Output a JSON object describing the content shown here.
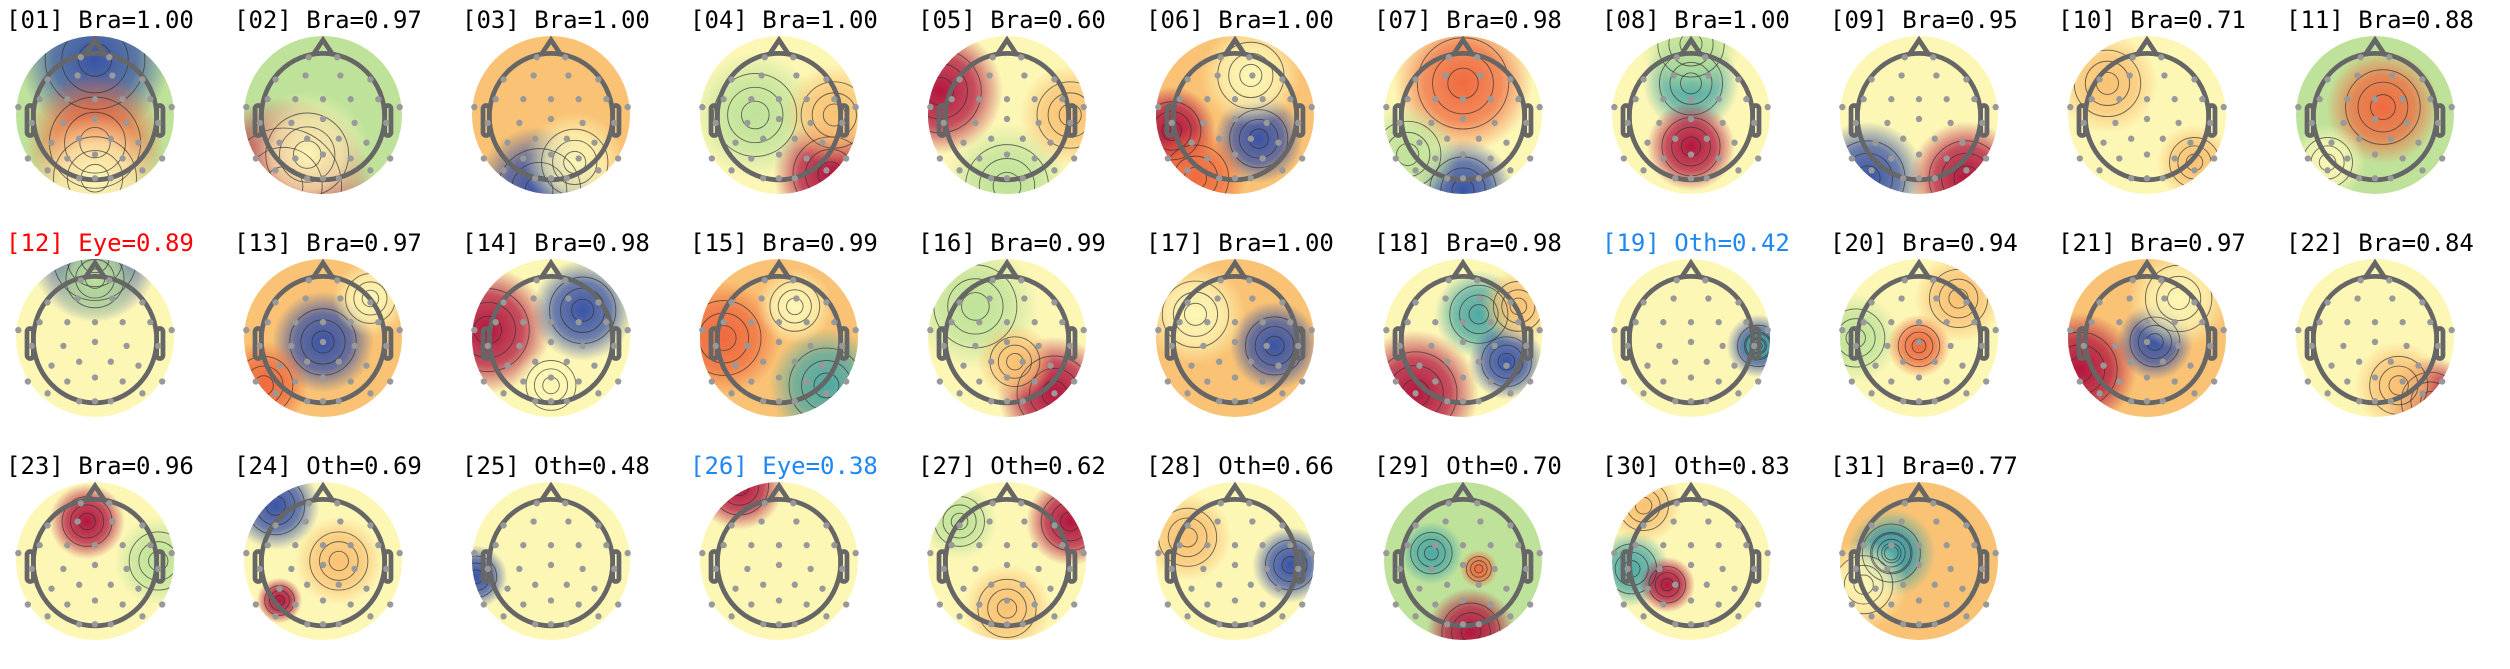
{
  "colors": {
    "default_label": "#000000",
    "eye_flagged": "#ff0000",
    "reclassified": "#1e88f0"
  },
  "colormap": [
    "#3a54a6",
    "#4ea9a4",
    "#bfe29a",
    "#fdf7b6",
    "#f9c274",
    "#ef6a3f",
    "#b3163f"
  ],
  "components": [
    {
      "label": "[01] Bra=1.00",
      "color": "#000000"
    },
    {
      "label": "[02] Bra=0.97",
      "color": "#000000"
    },
    {
      "label": "[03] Bra=1.00",
      "color": "#000000"
    },
    {
      "label": "[04] Bra=1.00",
      "color": "#000000"
    },
    {
      "label": "[05] Bra=0.60",
      "color": "#000000"
    },
    {
      "label": "[06] Bra=1.00",
      "color": "#000000"
    },
    {
      "label": "[07] Bra=0.98",
      "color": "#000000"
    },
    {
      "label": "[08] Bra=1.00",
      "color": "#000000"
    },
    {
      "label": "[09] Bra=0.95",
      "color": "#000000"
    },
    {
      "label": "[10] Bra=0.71",
      "color": "#000000"
    },
    {
      "label": "[11] Bra=0.88",
      "color": "#000000"
    },
    {
      "label": "[12] Eye=0.89",
      "color": "#ff0000"
    },
    {
      "label": "[13] Bra=0.97",
      "color": "#000000"
    },
    {
      "label": "[14] Bra=0.98",
      "color": "#000000"
    },
    {
      "label": "[15] Bra=0.99",
      "color": "#000000"
    },
    {
      "label": "[16] Bra=0.99",
      "color": "#000000"
    },
    {
      "label": "[17] Bra=1.00",
      "color": "#000000"
    },
    {
      "label": "[18] Bra=0.98",
      "color": "#000000"
    },
    {
      "label": "[19] Oth=0.42",
      "color": "#1e88f0"
    },
    {
      "label": "[20] Bra=0.94",
      "color": "#000000"
    },
    {
      "label": "[21] Bra=0.97",
      "color": "#000000"
    },
    {
      "label": "[22] Bra=0.84",
      "color": "#000000"
    },
    {
      "label": "[23] Bra=0.96",
      "color": "#000000"
    },
    {
      "label": "[24] Oth=0.69",
      "color": "#000000"
    },
    {
      "label": "[25] Oth=0.48",
      "color": "#000000"
    },
    {
      "label": "[26] Eye=0.38",
      "color": "#1e88f0"
    },
    {
      "label": "[27] Oth=0.62",
      "color": "#000000"
    },
    {
      "label": "[28] Oth=0.66",
      "color": "#000000"
    },
    {
      "label": "[29] Oth=0.70",
      "color": "#000000"
    },
    {
      "label": "[30] Oth=0.83",
      "color": "#000000"
    },
    {
      "label": "[31] Bra=0.77",
      "color": "#000000"
    }
  ]
}
